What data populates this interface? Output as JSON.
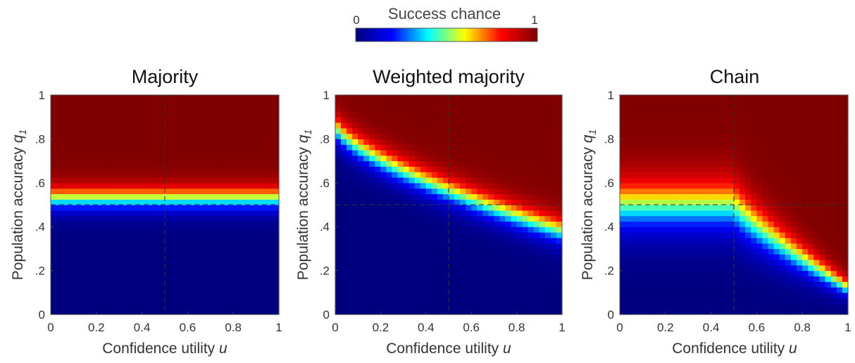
{
  "colorbar": {
    "title": "Success chance",
    "min_label": "0",
    "max_label": "1",
    "colormap": [
      "#00007f",
      "#0000ff",
      "#00ffff",
      "#ffff00",
      "#ff0000",
      "#7f0000"
    ]
  },
  "chart_data": [
    {
      "type": "heatmap",
      "title": "Majority",
      "xlabel": "Confidence utility u",
      "ylabel": "Population accuracy q1",
      "xlim": [
        0,
        1
      ],
      "ylim": [
        0,
        1
      ],
      "x_ticks": [
        "0",
        "0.2",
        "0.4",
        "0.6",
        "0.8",
        "1"
      ],
      "y_ticks": [
        "0",
        ".2",
        ".4",
        ".6",
        ".8",
        "1"
      ],
      "reference_lines": {
        "x": 0.5,
        "y": 0.5
      },
      "value_range": [
        0,
        1
      ],
      "grid_size": [
        40,
        40
      ],
      "function": {
        "kind": "flat_threshold",
        "center": 0.53,
        "width": 0.08
      }
    },
    {
      "type": "heatmap",
      "title": "Weighted majority",
      "xlabel": "Confidence utility u",
      "ylabel": "Population accuracy q1",
      "xlim": [
        0,
        1
      ],
      "ylim": [
        0,
        1
      ],
      "x_ticks": [
        "0",
        "0.2",
        "0.4",
        "0.6",
        "0.8",
        "1"
      ],
      "y_ticks": [
        "0",
        ".2",
        ".4",
        ".6",
        ".8",
        "1"
      ],
      "reference_lines": {
        "x": 0.5,
        "y": 0.5
      },
      "value_range": [
        0,
        1
      ],
      "grid_size": [
        40,
        40
      ],
      "function": {
        "kind": "falling_threshold",
        "center_at_u0": 0.86,
        "center_at_u1": 0.38,
        "width": 0.09
      }
    },
    {
      "type": "heatmap",
      "title": "Chain",
      "xlabel": "Confidence utility u",
      "ylabel": "Population accuracy q1",
      "xlim": [
        0,
        1
      ],
      "ylim": [
        0,
        1
      ],
      "x_ticks": [
        "0",
        "0.2",
        "0.4",
        "0.6",
        "0.8",
        "1"
      ],
      "y_ticks": [
        "0",
        ".2",
        ".4",
        ".6",
        ".8",
        "1"
      ],
      "reference_lines": {
        "x": 0.5,
        "y": 0.5
      },
      "value_range": [
        0,
        1
      ],
      "grid_size": [
        40,
        40
      ],
      "function": {
        "kind": "chain",
        "center_low_u": 0.5,
        "center_at_u1": 0.12,
        "knee_u": 0.5,
        "width_low_u": 0.17,
        "width_at_u1": 0.06
      }
    }
  ]
}
